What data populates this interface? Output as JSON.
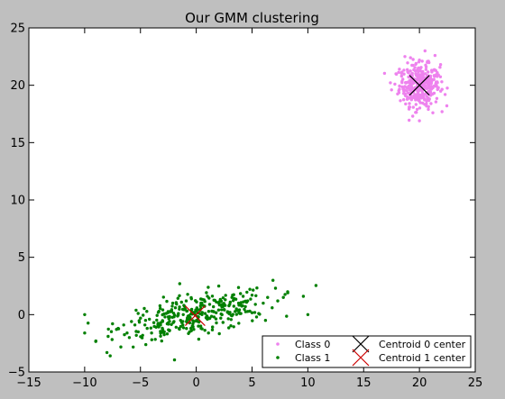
{
  "chart_data": {
    "type": "scatter",
    "title": "Our GMM clustering",
    "xlabel": "",
    "ylabel": "",
    "xlim": [
      -15,
      25
    ],
    "ylim": [
      -5,
      25
    ],
    "x_ticks": [
      -15,
      -10,
      -5,
      0,
      5,
      10,
      15,
      20,
      25
    ],
    "y_ticks": [
      -5,
      0,
      5,
      10,
      15,
      20,
      25
    ],
    "grid": false,
    "legend_position": "bottom-right",
    "legend_columns": 2,
    "series": [
      {
        "name": "Class 0",
        "marker": "dot",
        "color": "#ee82ee",
        "center": [
          20,
          20
        ],
        "spread": [
          0.9,
          0.9
        ],
        "points": [
          [
            20.1,
            20.3
          ],
          [
            19.6,
            19.8
          ],
          [
            20.5,
            20.6
          ],
          [
            19.2,
            20.9
          ],
          [
            21.0,
            19.4
          ],
          [
            20.3,
            21.2
          ],
          [
            19.5,
            19.1
          ],
          [
            20.8,
            20.1
          ],
          [
            19.9,
            18.7
          ],
          [
            20.6,
            21.6
          ],
          [
            18.8,
            20.2
          ],
          [
            21.3,
            20.5
          ],
          [
            19.7,
            21.9
          ],
          [
            20.2,
            18.9
          ],
          [
            21.1,
            21.3
          ],
          [
            18.6,
            19.5
          ],
          [
            20.4,
            19.7
          ],
          [
            19.3,
            20.6
          ],
          [
            21.5,
            19.9
          ],
          [
            20.0,
            22.2
          ],
          [
            19.1,
            18.4
          ],
          [
            20.9,
            18.8
          ],
          [
            18.4,
            20.8
          ],
          [
            21.7,
            20.9
          ],
          [
            20.7,
            22.0
          ],
          [
            19.8,
            17.9
          ],
          [
            17.8,
            20.1
          ],
          [
            22.0,
            20.3
          ],
          [
            20.5,
            23.0
          ],
          [
            19.4,
            17.3
          ],
          [
            21.2,
            17.6
          ],
          [
            18.2,
            21.4
          ],
          [
            21.9,
            21.8
          ],
          [
            17.5,
            19.6
          ],
          [
            22.3,
            19.2
          ],
          [
            20.0,
            16.9
          ],
          [
            18.7,
            22.5
          ],
          [
            21.4,
            22.6
          ],
          [
            19.0,
            21.1
          ],
          [
            20.6,
            19.3
          ],
          [
            19.6,
            20.4
          ],
          [
            20.2,
            19.9
          ],
          [
            20.9,
            20.8
          ],
          [
            19.9,
            21.5
          ],
          [
            20.4,
            20.0
          ],
          [
            18.9,
            19.0
          ],
          [
            21.6,
            21.1
          ],
          [
            19.2,
            22.4
          ],
          [
            20.8,
            17.9
          ],
          [
            17.9,
            21.0
          ]
        ]
      },
      {
        "name": "Class 1",
        "marker": "dot",
        "color": "#008000",
        "center": [
          0,
          0
        ],
        "spread": [
          3.4,
          0.9
        ],
        "points": [
          [
            -10,
            0
          ],
          [
            -10,
            -1.6
          ],
          [
            -8,
            -3.3
          ],
          [
            -7.5,
            -0.8
          ],
          [
            -7,
            -1.2
          ],
          [
            -6.5,
            -0.9
          ],
          [
            -6.2,
            -1.6
          ],
          [
            -6,
            -2.0
          ],
          [
            -5.8,
            -0.6
          ],
          [
            -5.5,
            -0.9
          ],
          [
            -5.2,
            -1.5
          ],
          [
            -5,
            -0.3
          ],
          [
            -4.8,
            -1.8
          ],
          [
            -4.6,
            -0.9
          ],
          [
            -4.4,
            -1.2
          ],
          [
            -4.2,
            -0.4
          ],
          [
            -4,
            -1.6
          ],
          [
            -3.8,
            -0.7
          ],
          [
            -3.6,
            -1.1
          ],
          [
            -3.4,
            0.2
          ],
          [
            -3.2,
            -0.9
          ],
          [
            -3,
            -1.3
          ],
          [
            -2.8,
            -0.2
          ],
          [
            -2.6,
            -0.8
          ],
          [
            -2.4,
            -1.4
          ],
          [
            -2.2,
            0.3
          ],
          [
            -2,
            -0.6
          ],
          [
            -1.8,
            -1.1
          ],
          [
            -1.6,
            0.1
          ],
          [
            -1.4,
            -0.5
          ],
          [
            -1.2,
            -0.9
          ],
          [
            -1,
            0.5
          ],
          [
            -0.8,
            -0.3
          ],
          [
            -0.6,
            -1.5
          ],
          [
            -0.4,
            0.2
          ],
          [
            -0.2,
            -0.6
          ],
          [
            0,
            0.4
          ],
          [
            0.2,
            -0.2
          ],
          [
            0.4,
            -1.0
          ],
          [
            0.6,
            0.8
          ],
          [
            0.8,
            0.1
          ],
          [
            1,
            -0.4
          ],
          [
            1.2,
            0.9
          ],
          [
            1.4,
            0.3
          ],
          [
            1.6,
            -0.2
          ],
          [
            1.8,
            1.1
          ],
          [
            2,
            0.4
          ],
          [
            2.2,
            -0.3
          ],
          [
            2.4,
            0.7
          ],
          [
            2.6,
            1.3
          ],
          [
            2.8,
            0.2
          ],
          [
            3,
            0.9
          ],
          [
            3.2,
            -0.1
          ],
          [
            3.4,
            1.4
          ],
          [
            3.6,
            0.5
          ],
          [
            3.8,
            1.0
          ],
          [
            4,
            0.1
          ],
          [
            4.2,
            1.6
          ],
          [
            4.4,
            0.7
          ],
          [
            4.6,
            1.2
          ],
          [
            4.8,
            0.3
          ],
          [
            5,
            1.7
          ],
          [
            5.3,
            0.9
          ],
          [
            5.6,
            0.1
          ],
          [
            6,
            1.0
          ],
          [
            6.4,
            1.5
          ],
          [
            6.8,
            0.6
          ],
          [
            7.3,
            1.2
          ],
          [
            7.8,
            1.5
          ],
          [
            8.2,
            1.9
          ],
          [
            9.6,
            1.6
          ],
          [
            10,
            0
          ],
          [
            6.2,
            -0.5
          ],
          [
            5.4,
            -0.2
          ],
          [
            7.1,
            2.3
          ],
          [
            -9,
            -2.3
          ],
          [
            -7.9,
            -1.9
          ],
          [
            -3.1,
            -2.3
          ],
          [
            1.1,
            -1.6
          ],
          [
            -0.9,
            1.2
          ]
        ]
      },
      {
        "name": "Centroid 0 center",
        "marker": "x",
        "color": "#000000",
        "points": [
          [
            20.0,
            20.0
          ]
        ]
      },
      {
        "name": "Centroid 1 center",
        "marker": "x",
        "color": "#cc0000",
        "points": [
          [
            -0.1,
            -0.1
          ]
        ]
      }
    ]
  }
}
